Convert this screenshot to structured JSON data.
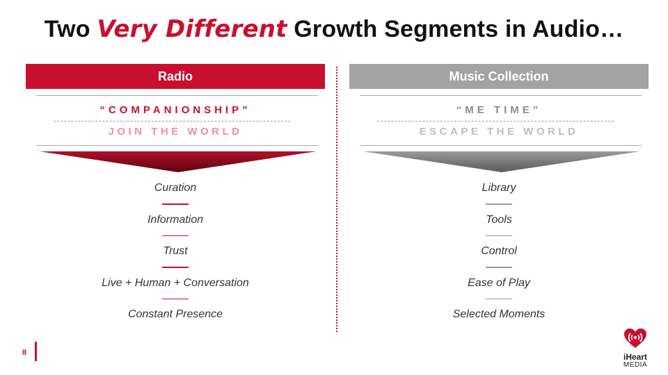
{
  "title": {
    "prefix": "Two ",
    "accent": "Very Different",
    "suffix": " Growth Segments in Audio…"
  },
  "left": {
    "header": "Radio",
    "quote": "“COMPANIONSHIP”",
    "sub": "JOIN THE WORLD",
    "items": [
      "Curation",
      "Information",
      "Trust",
      "Live + Human + Conversation",
      "Constant Presence"
    ]
  },
  "right": {
    "header": "Music Collection",
    "quote": "“ME TIME”",
    "sub": "ESCAPE THE WORLD",
    "items": [
      "Library",
      "Tools",
      "Control",
      "Ease of Play",
      "Selected Moments"
    ]
  },
  "footer": {
    "page_number": "8"
  },
  "logo": {
    "line1": "iHeart",
    "line2": "MEDIA"
  },
  "colors": {
    "accent": "#c8102e",
    "gray_header": "#a3a3a3",
    "left_chevron": "#8b0a1a",
    "right_chevron": "#7a7a7a"
  }
}
